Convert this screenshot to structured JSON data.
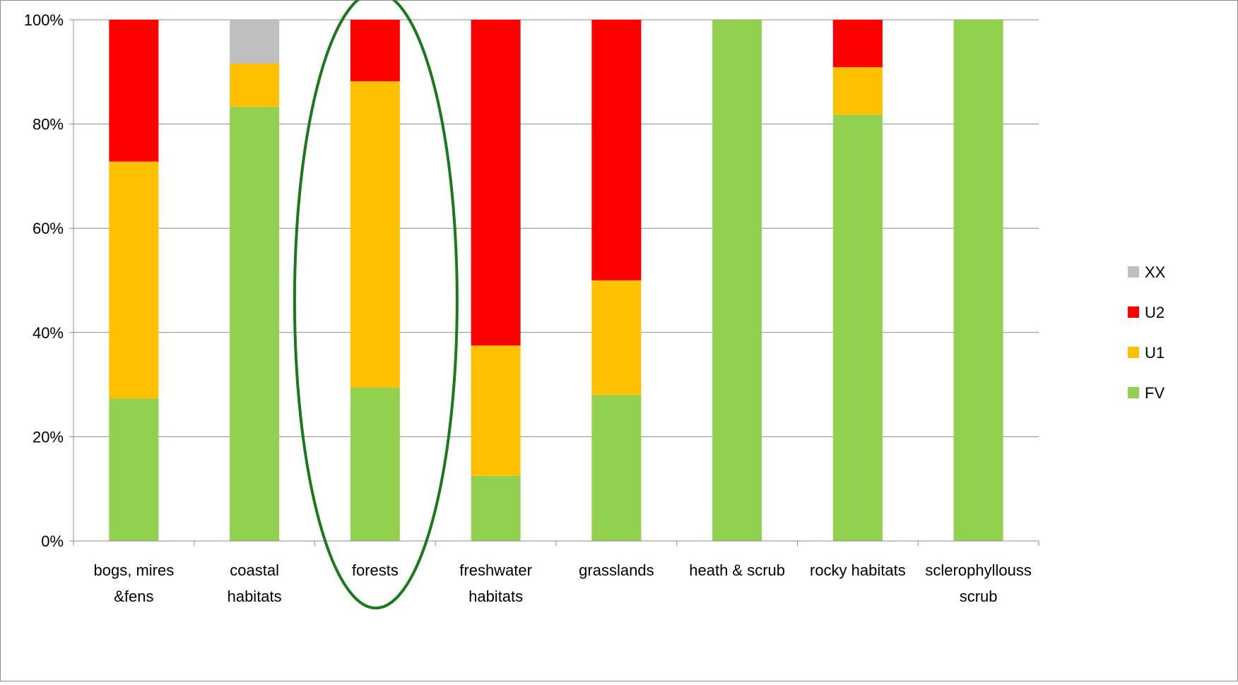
{
  "chart_data": {
    "type": "bar",
    "stacked": true,
    "percent_stacked": true,
    "title": "",
    "xlabel": "",
    "ylabel": "",
    "ylim": [
      0,
      100
    ],
    "y_ticks": [
      "0%",
      "20%",
      "40%",
      "60%",
      "80%",
      "100%"
    ],
    "y_tick_values": [
      0,
      20,
      40,
      60,
      80,
      100
    ],
    "grid": true,
    "legend_position": "right",
    "categories": [
      [
        "bogs, mires",
        "&fens"
      ],
      [
        "coastal",
        "habitats"
      ],
      [
        "forests"
      ],
      [
        "freshwater",
        "habitats"
      ],
      [
        "grasslands"
      ],
      [
        "heath & scrub"
      ],
      [
        "rocky habitats"
      ],
      [
        "sclerophyllouss",
        "scrub"
      ]
    ],
    "series": [
      {
        "name": "FV",
        "color": "#92d050",
        "values": [
          27.3,
          83.3,
          29.4,
          12.5,
          28.0,
          100,
          81.8,
          100
        ]
      },
      {
        "name": "U1",
        "color": "#ffc000",
        "values": [
          45.5,
          8.3,
          58.8,
          25.0,
          22.0,
          0,
          9.1,
          0
        ]
      },
      {
        "name": "U2",
        "color": "#ff0000",
        "values": [
          27.2,
          0,
          11.8,
          62.5,
          50.0,
          0,
          9.1,
          0
        ]
      },
      {
        "name": "XX",
        "color": "#bfbfbf",
        "values": [
          0,
          8.4,
          0,
          0,
          0,
          0,
          0,
          0
        ]
      }
    ],
    "legend_order": [
      "XX",
      "U2",
      "U1",
      "FV"
    ],
    "annotation": {
      "type": "ellipse",
      "target_category": "forests",
      "color": "#1a7a1a"
    }
  }
}
